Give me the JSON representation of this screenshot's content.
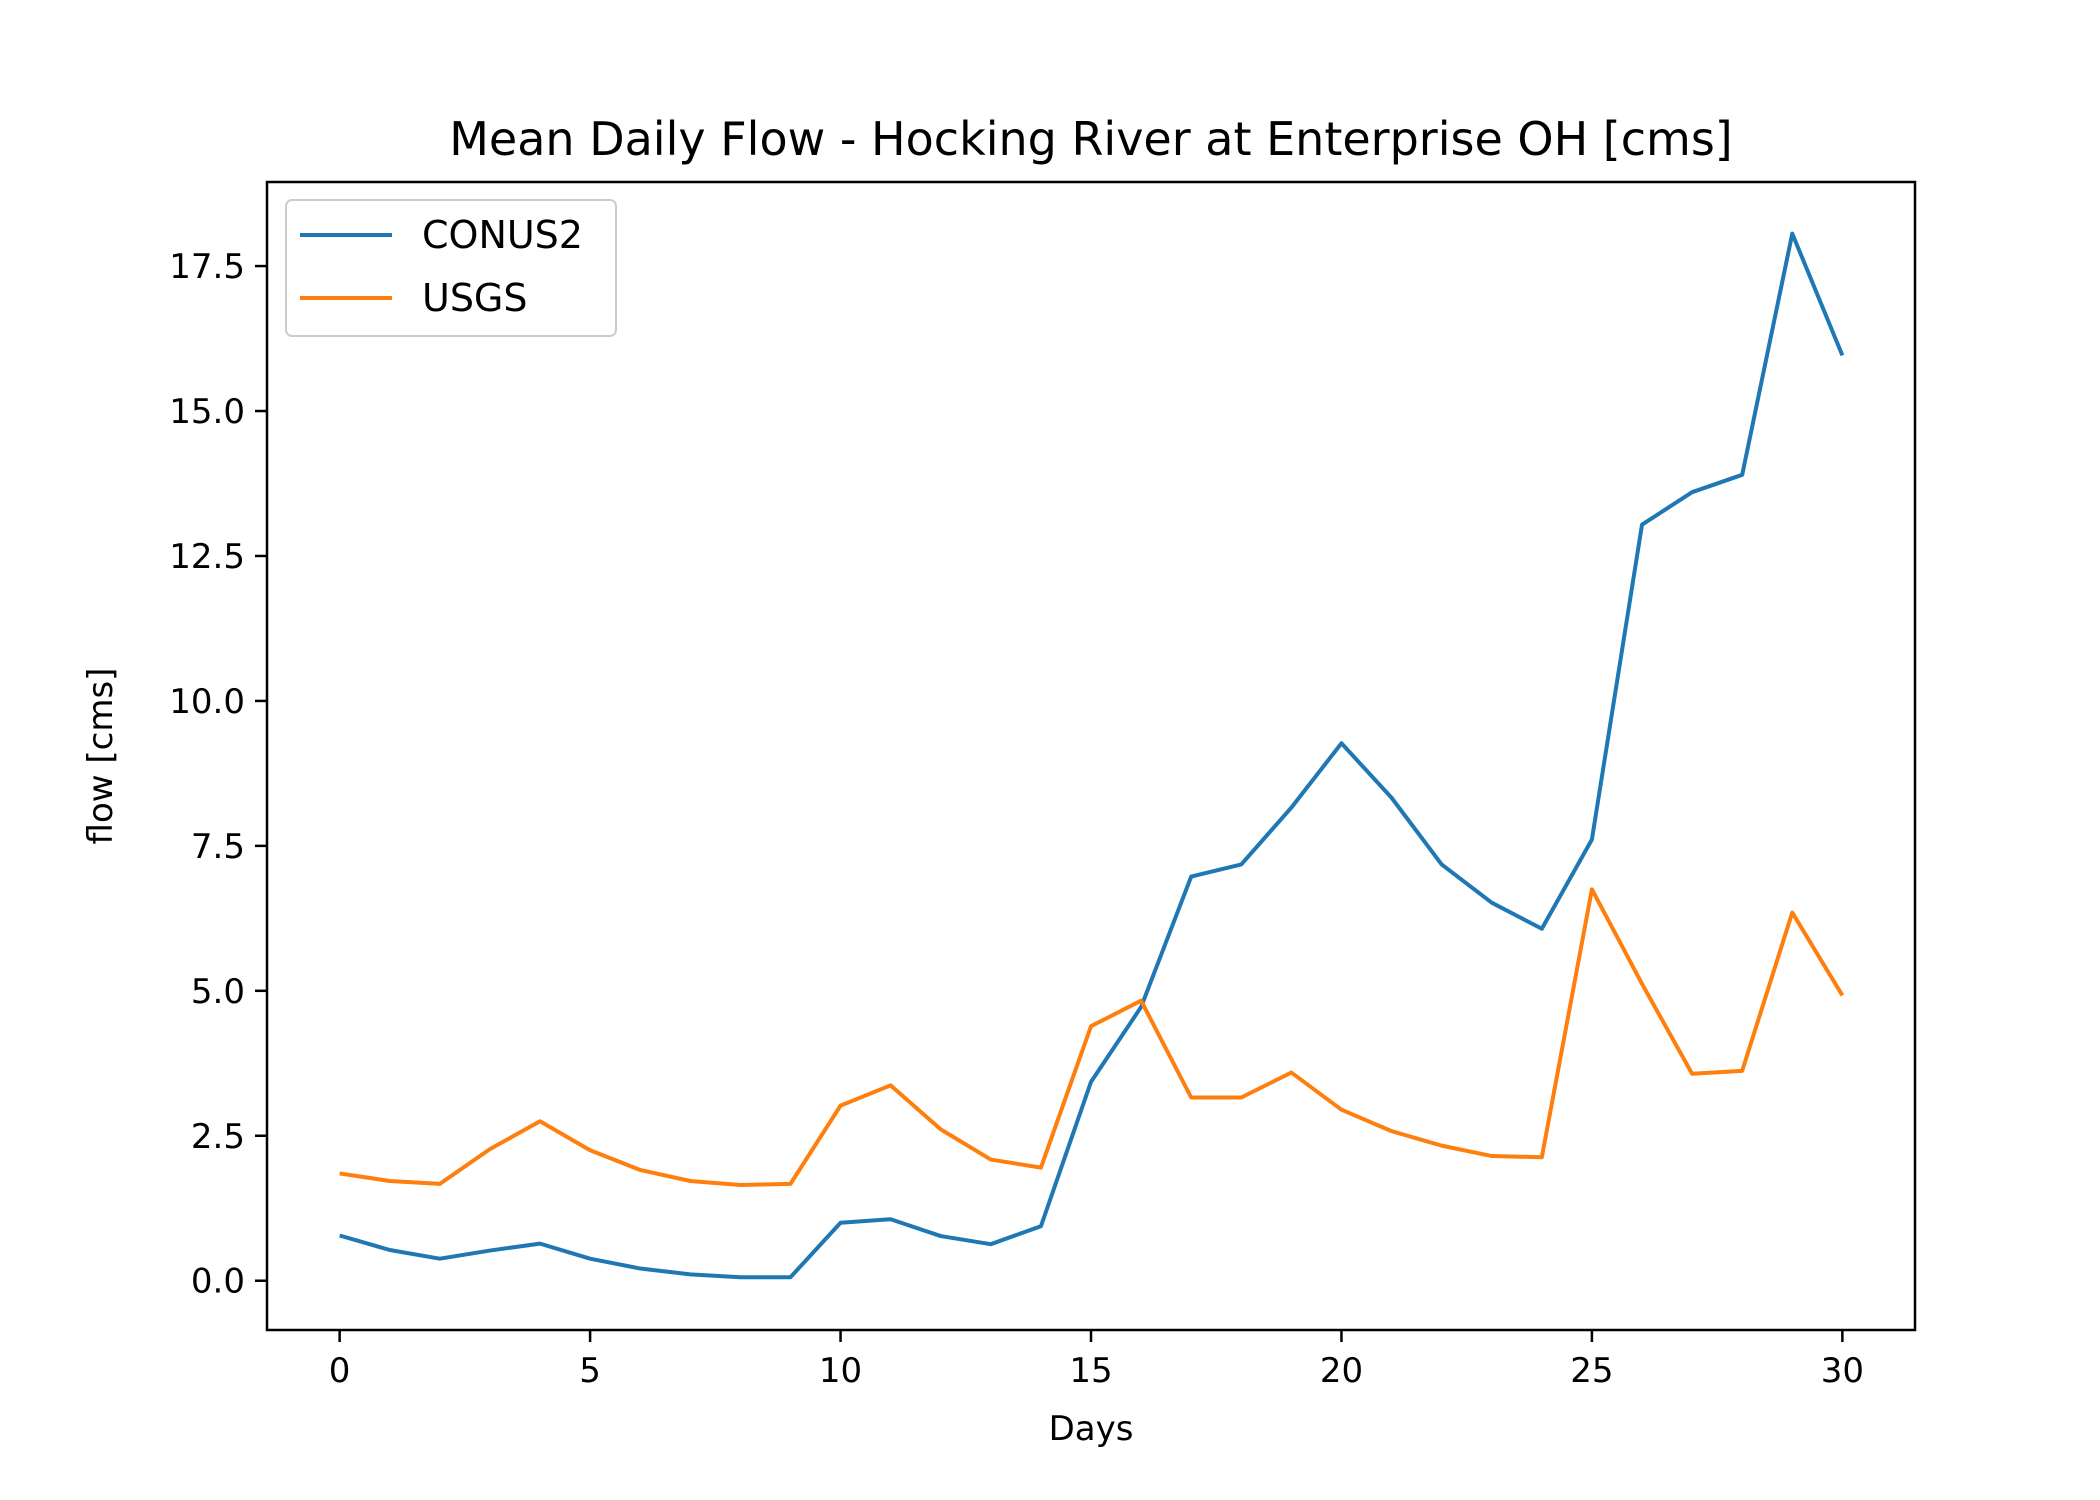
{
  "chart_data": {
    "type": "line",
    "title": "Mean Daily Flow - Hocking River at Enterprise OH [cms]",
    "xlabel": "Days",
    "ylabel": "flow [cms]",
    "xlim": [
      -1.45,
      31.45
    ],
    "ylim": [
      -0.85,
      18.95
    ],
    "xticks": [
      0,
      5,
      10,
      15,
      20,
      25,
      30
    ],
    "xtick_labels": [
      "0",
      "5",
      "10",
      "15",
      "20",
      "25",
      "30"
    ],
    "yticks": [
      0.0,
      2.5,
      5.0,
      7.5,
      10.0,
      12.5,
      15.0,
      17.5
    ],
    "ytick_labels": [
      "0.0",
      "2.5",
      "5.0",
      "7.5",
      "10.0",
      "12.5",
      "15.0",
      "17.5"
    ],
    "grid": false,
    "legend_position": "top-left",
    "x": [
      0,
      1,
      2,
      3,
      4,
      5,
      6,
      7,
      8,
      9,
      10,
      11,
      12,
      13,
      14,
      15,
      16,
      17,
      18,
      19,
      20,
      21,
      22,
      23,
      24,
      25,
      26,
      27,
      28,
      29,
      30
    ],
    "series": [
      {
        "name": "CONUS2",
        "color": "#1f77b4",
        "values": [
          0.78,
          0.53,
          0.38,
          0.52,
          0.64,
          0.38,
          0.21,
          0.11,
          0.06,
          0.06,
          1.0,
          1.06,
          0.77,
          0.63,
          0.94,
          3.43,
          4.72,
          6.97,
          7.18,
          8.16,
          9.27,
          8.33,
          7.18,
          6.52,
          6.07,
          7.61,
          13.04,
          13.6,
          13.9,
          18.06,
          15.96
        ]
      },
      {
        "name": "USGS",
        "color": "#ff7f0e",
        "values": [
          1.85,
          1.72,
          1.67,
          2.27,
          2.75,
          2.25,
          1.91,
          1.72,
          1.65,
          1.67,
          3.02,
          3.37,
          2.61,
          2.09,
          1.95,
          4.39,
          4.83,
          3.16,
          3.16,
          3.59,
          2.95,
          2.58,
          2.33,
          2.15,
          2.13,
          6.75,
          5.12,
          3.57,
          3.62,
          6.35,
          4.92
        ]
      }
    ]
  }
}
